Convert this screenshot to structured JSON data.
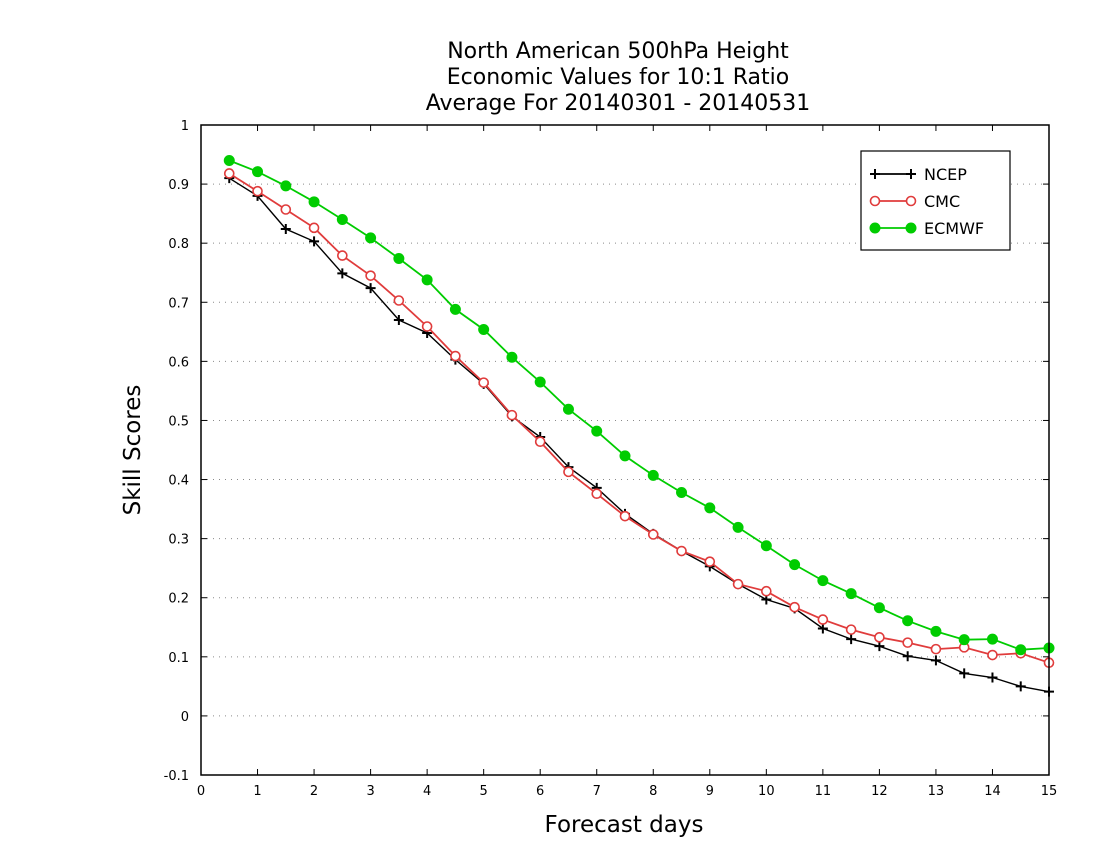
{
  "chart_data": {
    "type": "line",
    "title_lines": [
      "North American 500hPa Height",
      "Economic Values for 10:1 Ratio",
      "Average For 20140301 - 20140531"
    ],
    "xlabel": "Forecast days",
    "ylabel": "Skill Scores",
    "xlim": [
      0,
      15
    ],
    "ylim": [
      -0.1,
      1
    ],
    "x_ticks": [
      0,
      1,
      2,
      3,
      4,
      5,
      6,
      7,
      8,
      9,
      10,
      11,
      12,
      13,
      14,
      15
    ],
    "x_tick_labels": [
      "0",
      "1",
      "2",
      "3",
      "4",
      "5",
      "6",
      "7",
      "8",
      "9",
      "10",
      "11",
      "12",
      "13",
      "14",
      "15"
    ],
    "y_ticks": [
      -0.1,
      0,
      0.1,
      0.2,
      0.3,
      0.4,
      0.5,
      0.6,
      0.7,
      0.8,
      0.9,
      1
    ],
    "y_tick_labels": [
      "-0.1",
      "0",
      "0.1",
      "0.2",
      "0.3",
      "0.4",
      "0.5",
      "0.6",
      "0.7",
      "0.8",
      "0.9",
      "1"
    ],
    "grid": true,
    "legend_position": "top-right",
    "x": [
      0.5,
      1,
      1.5,
      2,
      2.5,
      3,
      3.5,
      4,
      4.5,
      5,
      5.5,
      6,
      6.5,
      7,
      7.5,
      8,
      8.5,
      9,
      9.5,
      10,
      10.5,
      11,
      11.5,
      12,
      12.5,
      13,
      13.5,
      14,
      14.5,
      15
    ],
    "series": [
      {
        "name": "NCEP",
        "color": "#000000",
        "marker": "plus",
        "values": [
          0.91,
          0.88,
          0.824,
          0.803,
          0.749,
          0.724,
          0.67,
          0.648,
          0.603,
          0.562,
          0.507,
          0.472,
          0.421,
          0.386,
          0.342,
          0.308,
          0.279,
          0.253,
          0.223,
          0.197,
          0.182,
          0.148,
          0.13,
          0.118,
          0.101,
          0.094,
          0.072,
          0.065,
          0.05,
          0.041
        ]
      },
      {
        "name": "CMC",
        "color": "#e03c3c",
        "marker": "open-circle",
        "values": [
          0.918,
          0.888,
          0.857,
          0.826,
          0.779,
          0.745,
          0.703,
          0.659,
          0.609,
          0.564,
          0.509,
          0.464,
          0.413,
          0.376,
          0.338,
          0.307,
          0.279,
          0.261,
          0.223,
          0.211,
          0.184,
          0.163,
          0.146,
          0.133,
          0.124,
          0.113,
          0.116,
          0.103,
          0.106,
          0.09
        ]
      },
      {
        "name": "ECMWF",
        "color": "#00cc00",
        "marker": "filled-circle",
        "values": [
          0.94,
          0.921,
          0.897,
          0.87,
          0.84,
          0.809,
          0.774,
          0.738,
          0.688,
          0.654,
          0.607,
          0.565,
          0.519,
          0.482,
          0.44,
          0.407,
          0.378,
          0.352,
          0.319,
          0.288,
          0.256,
          0.229,
          0.207,
          0.183,
          0.161,
          0.143,
          0.129,
          0.13,
          0.112,
          0.115
        ]
      }
    ]
  }
}
